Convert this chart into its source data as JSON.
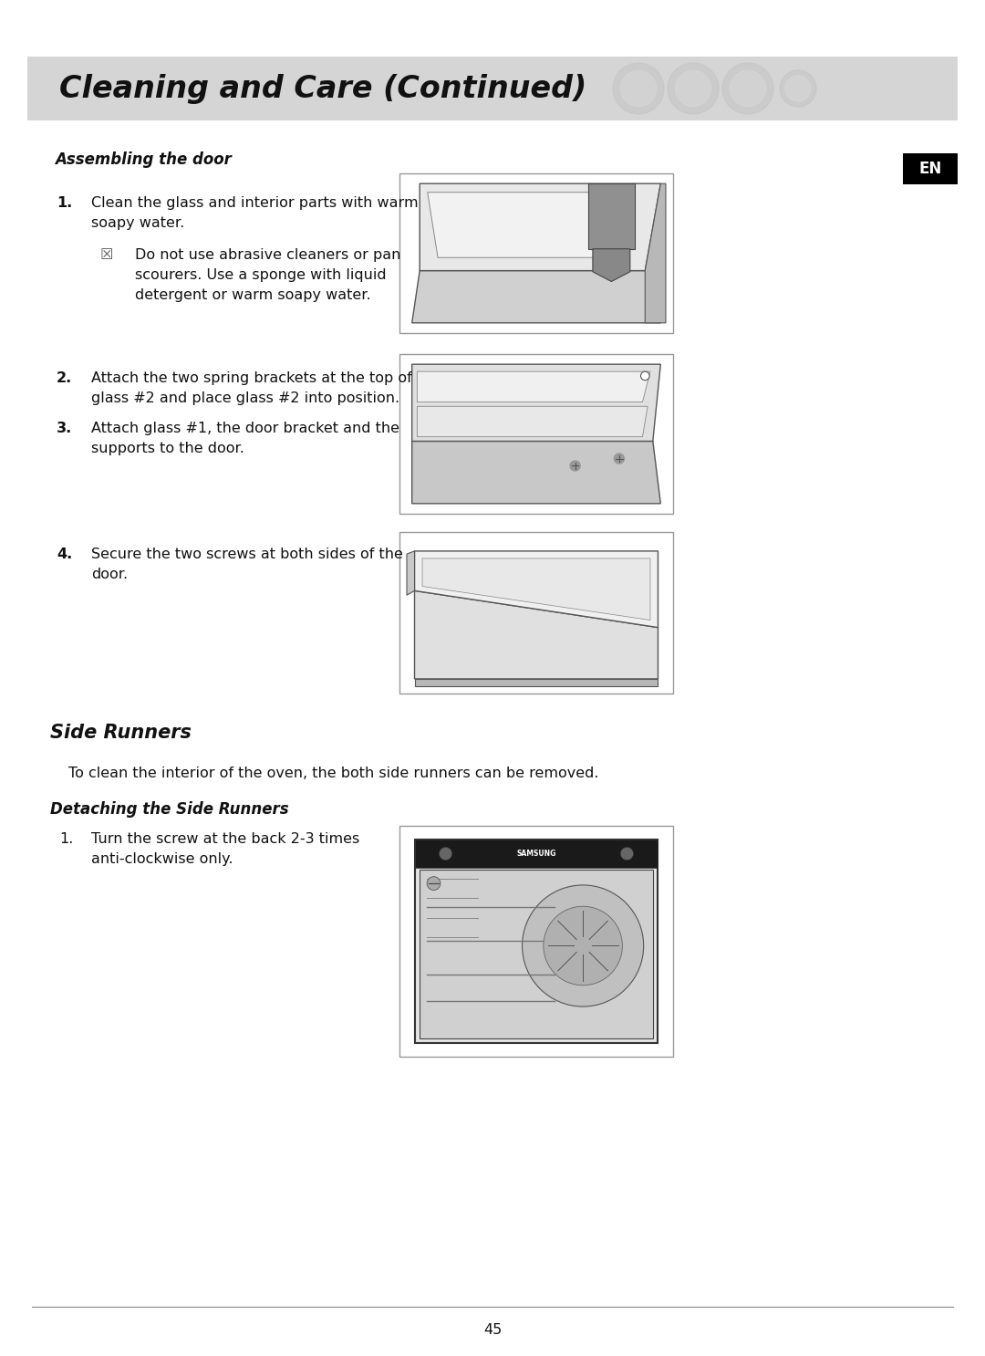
{
  "page_width": 10.8,
  "page_height": 14.86,
  "bg_color": "#ffffff",
  "header_bg": "#d8d8d8",
  "header_text": "Cleaning and Care (Continued)",
  "en_badge_color": "#000000",
  "en_text": "EN",
  "section1_title": "Assembling the door",
  "step1_num": "1.",
  "step1_text": "Clean the glass and interior parts with warm\nsoapy water.",
  "step1_sub_text": "Do not use abrasive cleaners or pan\nscourers. Use a sponge with liquid\ndetergent or warm soapy water.",
  "step2_num": "2.",
  "step2_text": "Attach the two spring brackets at the top of\nglass #2 and place glass #2 into position.",
  "step3_num": "3.",
  "step3_text": "Attach glass #1, the door bracket and the\nsupports to the door.",
  "step4_num": "4.",
  "step4_text": "Secure the two screws at both sides of the\ndoor.",
  "section2_title": "Side Runners",
  "side_runners_intro": "To clean the interior of the oven, the both side runners can be removed.",
  "section2_sub_title": "Detaching the Side Runners",
  "det_step1_num": "1.",
  "det_step1_text": "Turn the screw at the back 2-3 times\nanti-clockwise only.",
  "page_number": "45",
  "body_font_size": 11.5,
  "title_font_size": 12,
  "section_title_font_size": 15,
  "header_font_size": 24
}
